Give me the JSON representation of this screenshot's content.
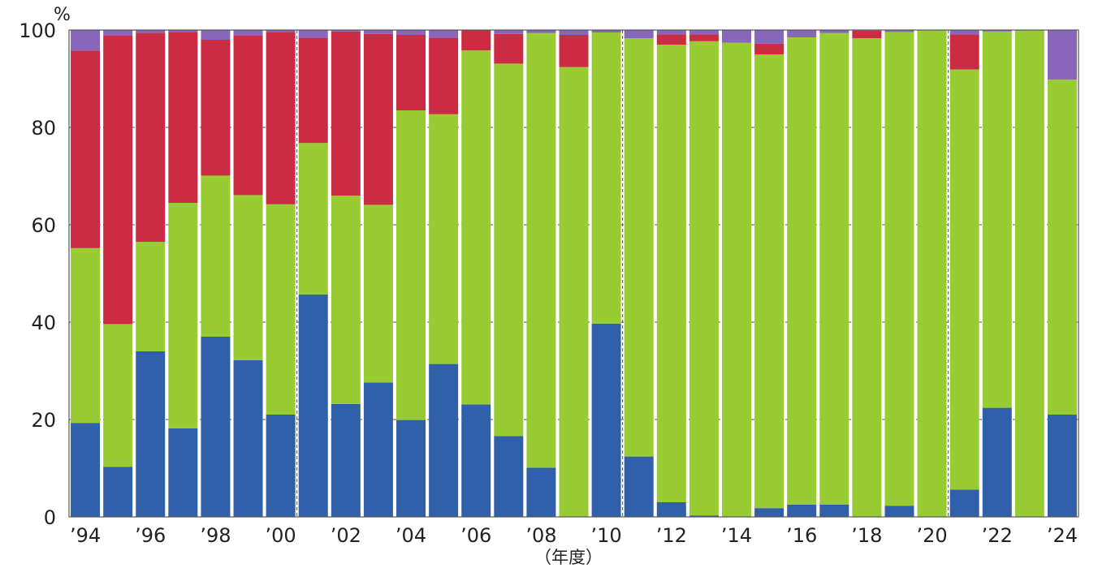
{
  "chart_data": {
    "type": "bar",
    "stacked": true,
    "normalized_percent": true,
    "categories": [
      "1994",
      "1995",
      "1996",
      "1997",
      "1998",
      "1999",
      "2000",
      "2001",
      "2002",
      "2003",
      "2004",
      "2005",
      "2006",
      "2007",
      "2008",
      "2009",
      "2010",
      "2011",
      "2012",
      "2013",
      "2014",
      "2015",
      "2016",
      "2017",
      "2018",
      "2019",
      "2020",
      "2021",
      "2022",
      "2023",
      "2024"
    ],
    "x_tick_labels": [
      {
        "index": 0,
        "label": "’94"
      },
      {
        "index": 2,
        "label": "’96"
      },
      {
        "index": 4,
        "label": "’98"
      },
      {
        "index": 6,
        "label": "’00"
      },
      {
        "index": 8,
        "label": "’02"
      },
      {
        "index": 10,
        "label": "’04"
      },
      {
        "index": 12,
        "label": "’06"
      },
      {
        "index": 14,
        "label": "’08"
      },
      {
        "index": 16,
        "label": "’10"
      },
      {
        "index": 18,
        "label": "’12"
      },
      {
        "index": 20,
        "label": "’14"
      },
      {
        "index": 22,
        "label": "’16"
      },
      {
        "index": 24,
        "label": "’18"
      },
      {
        "index": 26,
        "label": "’20"
      },
      {
        "index": 28,
        "label": "’22"
      },
      {
        "index": 30,
        "label": "’24"
      }
    ],
    "series": [
      {
        "color": "#3060aa",
        "values": [
          19.3,
          10.3,
          34.0,
          18.2,
          37.0,
          32.2,
          21.0,
          45.7,
          23.2,
          27.6,
          19.9,
          31.4,
          23.1,
          16.6,
          10.1,
          0,
          39.7,
          12.4,
          3.0,
          0.3,
          0,
          1.8,
          2.5,
          2.5,
          0,
          2.3,
          0,
          5.6,
          22.4,
          0,
          21.0
        ]
      },
      {
        "color": "#99cc33",
        "values": [
          35.9,
          29.3,
          22.5,
          46.3,
          33.1,
          33.9,
          43.2,
          31.1,
          42.8,
          36.5,
          63.6,
          51.3,
          72.7,
          76.5,
          89.3,
          92.4,
          59.8,
          85.9,
          94.0,
          97.4,
          97.4,
          93.2,
          96.0,
          96.9,
          98.3,
          97.3,
          100,
          86.3,
          77.3,
          100,
          68.8
        ]
      },
      {
        "color": "#cc2b44",
        "values": [
          40.6,
          59.3,
          42.9,
          35.1,
          27.9,
          32.8,
          35.4,
          21.6,
          33.7,
          35.1,
          15.5,
          15.7,
          4.2,
          6.1,
          0,
          6.6,
          0,
          0,
          2.1,
          1.4,
          0,
          2.2,
          0,
          0,
          1.6,
          0,
          0,
          7.2,
          0,
          0,
          0
        ]
      },
      {
        "color": "#8866bb",
        "values": [
          4.2,
          1.1,
          0.6,
          0.4,
          2.0,
          1.1,
          0.4,
          1.6,
          0.3,
          0.8,
          1.0,
          1.6,
          0,
          0.8,
          0.6,
          1.0,
          0.5,
          1.7,
          0.9,
          0.9,
          2.6,
          2.8,
          1.5,
          0.6,
          0.1,
          0.4,
          0,
          0.9,
          0.3,
          0,
          10.2
        ]
      }
    ],
    "y_unit": "%",
    "ylim": [
      0,
      100
    ],
    "y_ticks": [
      0,
      20,
      40,
      60,
      80,
      100
    ],
    "xlabel": "（年度）",
    "grid": "horizontal dashed",
    "period_separators_after_index": [
      6,
      16,
      26
    ]
  }
}
